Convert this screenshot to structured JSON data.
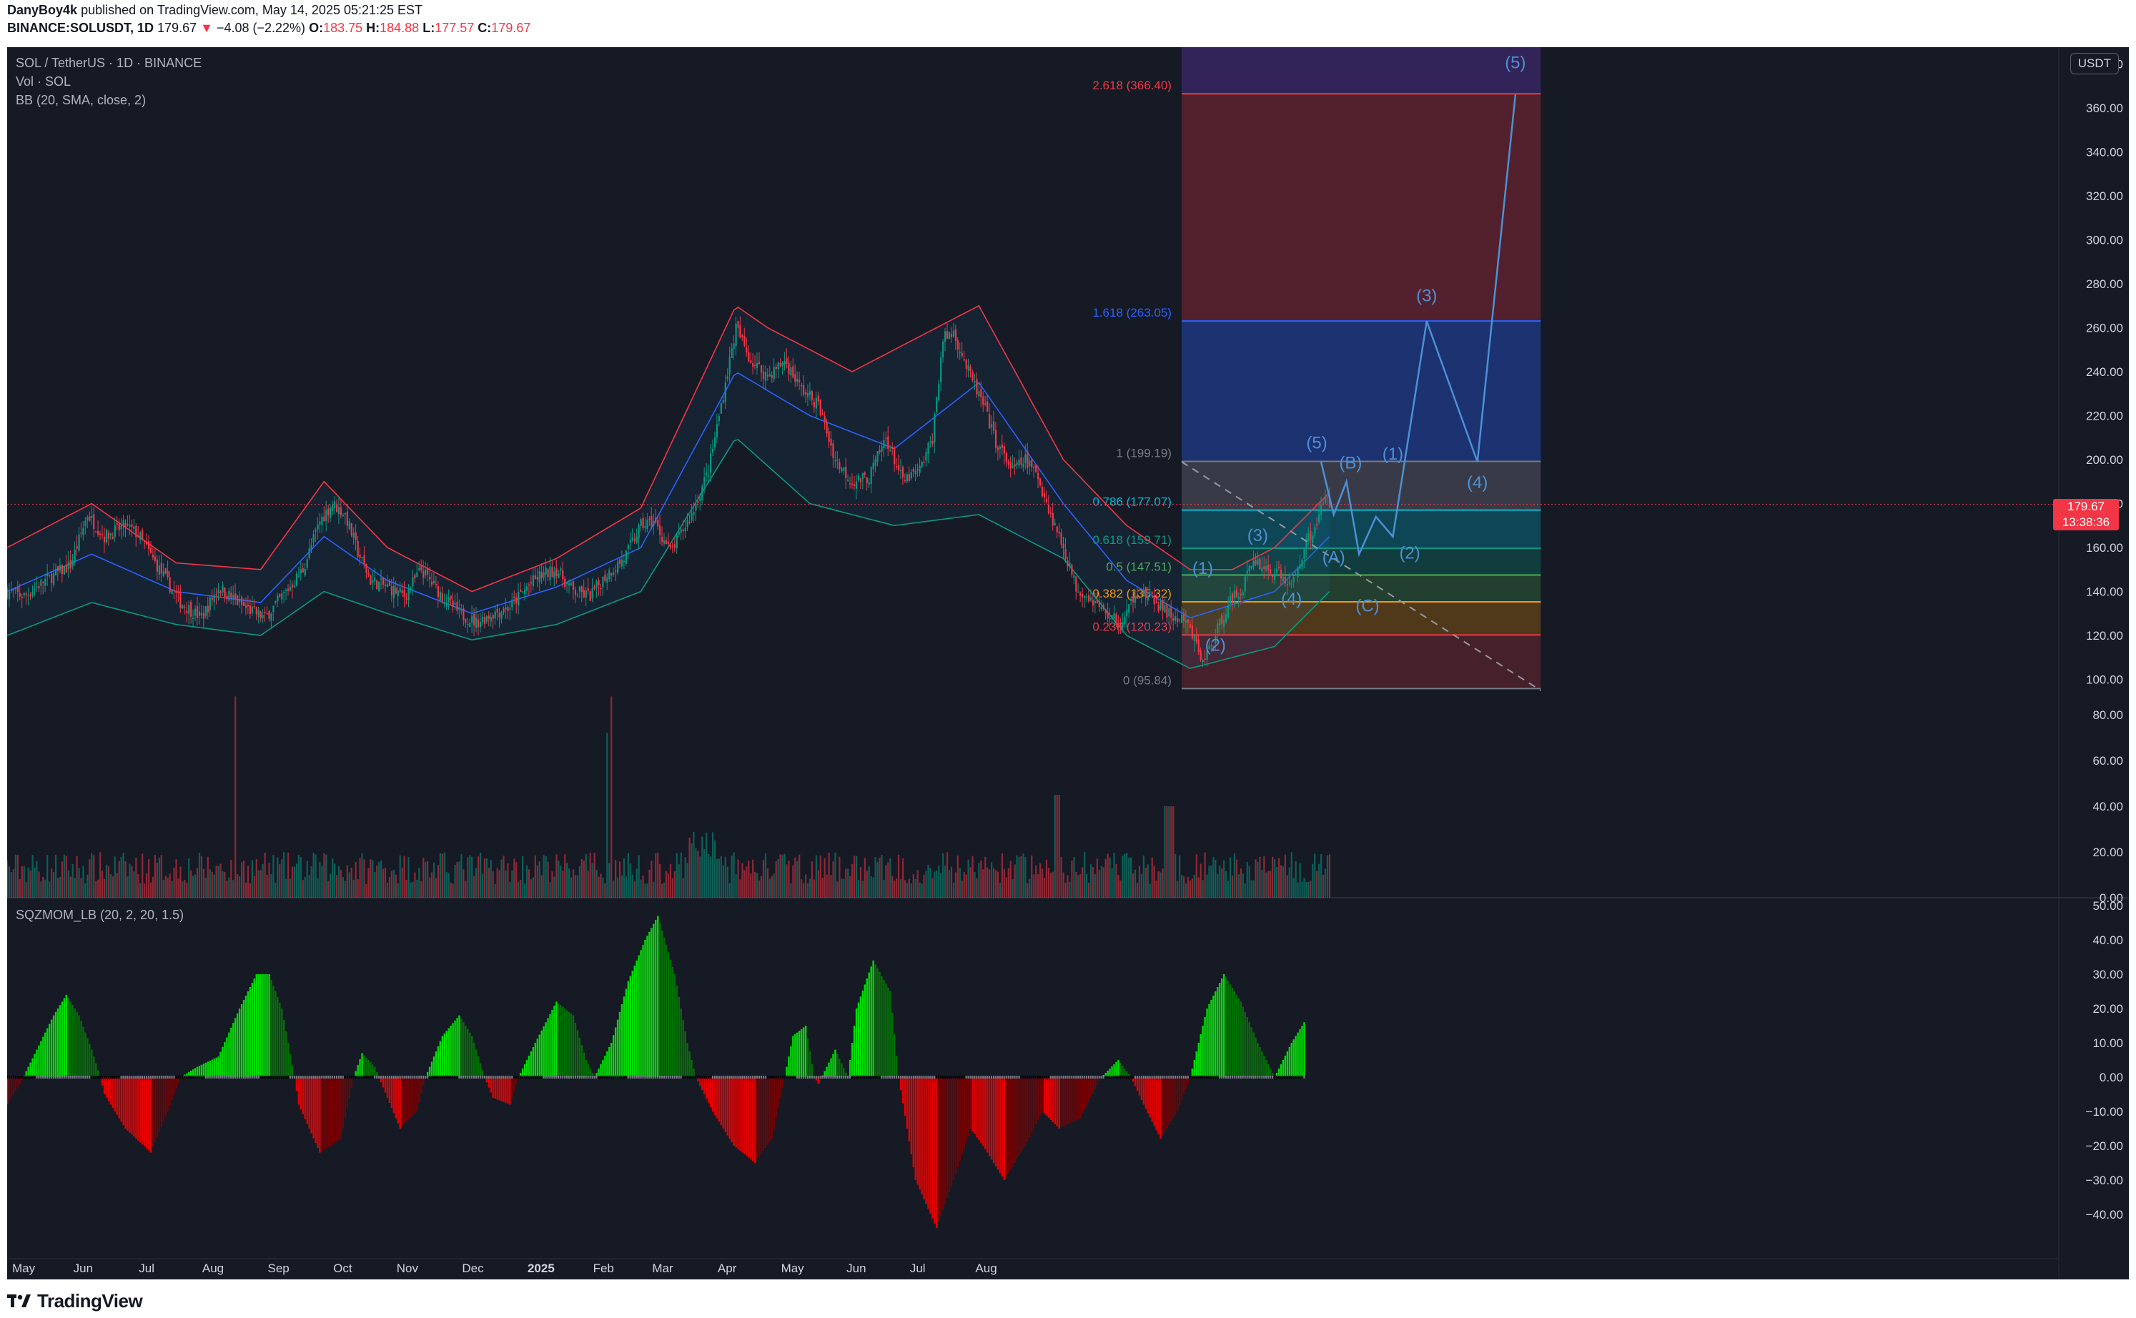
{
  "header": {
    "publisher": "DanyBoy4k",
    "published_text": "published on TradingView.com, May 14, 2025 05:21:25 EST",
    "symbol": "BINANCE:SOLUSDT, 1D",
    "last": "179.67",
    "arrow": "▼",
    "change": "−4.08 (−2.22%)",
    "o_label": "O:",
    "o_val": "183.75",
    "h_label": "H:",
    "h_val": "184.88",
    "l_label": "L:",
    "l_val": "177.57",
    "c_label": "C:",
    "c_val": "179.67"
  },
  "legend": {
    "title": "SOL / TetherUS · 1D · BINANCE",
    "vol": "Vol · SOL",
    "bb": "BB (20, SMA, close, 2)",
    "sqz": "SQZMOM_LB (20, 2, 20, 1.5)"
  },
  "price_axis": {
    "currency": "USDT",
    "current_price": "179.67",
    "countdown": "13:38:36"
  },
  "footer": {
    "brand": "TradingView"
  },
  "colors": {
    "background": "#161a25",
    "up": "#089981",
    "down": "#f23645",
    "bb_upper": "#f23645",
    "bb_basis": "#2962ff",
    "bb_lower": "#089981",
    "wave": "#4d90d6",
    "sqz_lime": "#00ff00",
    "sqz_green": "#008000",
    "sqz_red": "#ff0000",
    "sqz_maroon": "#800000"
  },
  "chart_data": [
    {
      "type": "candlestick",
      "title": "SOL / TetherUS · 1D · BINANCE",
      "x_ticks": [
        "May",
        "Jun",
        "Jul",
        "Aug",
        "Sep",
        "Oct",
        "Nov",
        "Dec",
        "2025",
        "Feb",
        "Mar",
        "Apr",
        "May",
        "Jun",
        "Jul",
        "Aug"
      ],
      "y_ticks": [
        "380.00",
        "360.00",
        "340.00",
        "320.00",
        "300.00",
        "280.00",
        "260.00",
        "240.00",
        "220.00",
        "200.00",
        "180.00",
        "160.00",
        "140.00",
        "120.00",
        "100.00"
      ],
      "y_range": [
        95,
        385
      ],
      "price_path": [
        [
          0,
          140
        ],
        [
          8,
          138
        ],
        [
          18,
          145
        ],
        [
          30,
          152
        ],
        [
          38,
          175
        ],
        [
          46,
          165
        ],
        [
          56,
          170
        ],
        [
          62,
          166
        ],
        [
          72,
          150
        ],
        [
          82,
          135
        ],
        [
          92,
          128
        ],
        [
          100,
          142
        ],
        [
          112,
          133
        ],
        [
          122,
          128
        ],
        [
          132,
          140
        ],
        [
          140,
          150
        ],
        [
          148,
          172
        ],
        [
          154,
          180
        ],
        [
          160,
          175
        ],
        [
          166,
          158
        ],
        [
          172,
          145
        ],
        [
          180,
          142
        ],
        [
          188,
          138
        ],
        [
          196,
          150
        ],
        [
          200,
          145
        ],
        [
          206,
          138
        ],
        [
          214,
          130
        ],
        [
          222,
          126
        ],
        [
          230,
          130
        ],
        [
          238,
          133
        ],
        [
          246,
          142
        ],
        [
          252,
          147
        ],
        [
          260,
          150
        ],
        [
          268,
          140
        ],
        [
          276,
          138
        ],
        [
          284,
          148
        ],
        [
          292,
          155
        ],
        [
          300,
          170
        ],
        [
          306,
          172
        ],
        [
          314,
          158
        ],
        [
          324,
          175
        ],
        [
          332,
          195
        ],
        [
          338,
          225
        ],
        [
          345,
          260
        ],
        [
          352,
          245
        ],
        [
          360,
          238
        ],
        [
          368,
          245
        ],
        [
          376,
          232
        ],
        [
          384,
          225
        ],
        [
          392,
          200
        ],
        [
          400,
          190
        ],
        [
          408,
          192
        ],
        [
          416,
          210
        ],
        [
          424,
          190
        ],
        [
          432,
          195
        ],
        [
          438,
          210
        ],
        [
          443,
          255
        ],
        [
          448,
          258
        ],
        [
          455,
          240
        ],
        [
          462,
          225
        ],
        [
          468,
          208
        ],
        [
          476,
          195
        ],
        [
          482,
          200
        ],
        [
          488,
          192
        ],
        [
          494,
          175
        ],
        [
          500,
          160
        ],
        [
          506,
          142
        ],
        [
          512,
          138
        ],
        [
          520,
          130
        ],
        [
          528,
          125
        ],
        [
          534,
          140
        ],
        [
          540,
          138
        ],
        [
          546,
          133
        ],
        [
          552,
          128
        ],
        [
          558,
          126
        ],
        [
          562,
          118
        ],
        [
          566,
          108
        ],
        [
          572,
          120
        ],
        [
          578,
          135
        ],
        [
          584,
          140
        ],
        [
          590,
          155
        ],
        [
          596,
          150
        ],
        [
          602,
          148
        ],
        [
          608,
          142
        ],
        [
          614,
          160
        ],
        [
          620,
          172
        ],
        [
          624,
          182
        ],
        [
          626,
          180
        ]
      ],
      "bb_upper_path": [
        [
          0,
          160
        ],
        [
          40,
          180
        ],
        [
          80,
          153
        ],
        [
          120,
          150
        ],
        [
          150,
          190
        ],
        [
          180,
          160
        ],
        [
          220,
          140
        ],
        [
          260,
          155
        ],
        [
          300,
          178
        ],
        [
          345,
          270
        ],
        [
          360,
          260
        ],
        [
          400,
          240
        ],
        [
          440,
          260
        ],
        [
          460,
          270
        ],
        [
          500,
          200
        ],
        [
          530,
          170
        ],
        [
          560,
          150
        ],
        [
          580,
          150
        ],
        [
          600,
          160
        ],
        [
          626,
          185
        ]
      ],
      "bb_basis_path": [
        [
          0,
          140
        ],
        [
          40,
          157
        ],
        [
          80,
          140
        ],
        [
          120,
          135
        ],
        [
          150,
          165
        ],
        [
          180,
          145
        ],
        [
          220,
          130
        ],
        [
          260,
          142
        ],
        [
          300,
          160
        ],
        [
          345,
          240
        ],
        [
          380,
          220
        ],
        [
          420,
          205
        ],
        [
          460,
          235
        ],
        [
          500,
          180
        ],
        [
          530,
          145
        ],
        [
          560,
          128
        ],
        [
          600,
          140
        ],
        [
          626,
          165
        ]
      ],
      "bb_lower_path": [
        [
          0,
          120
        ],
        [
          40,
          135
        ],
        [
          80,
          125
        ],
        [
          120,
          120
        ],
        [
          150,
          140
        ],
        [
          180,
          130
        ],
        [
          220,
          118
        ],
        [
          260,
          125
        ],
        [
          300,
          140
        ],
        [
          345,
          210
        ],
        [
          380,
          180
        ],
        [
          420,
          170
        ],
        [
          460,
          175
        ],
        [
          500,
          155
        ],
        [
          530,
          120
        ],
        [
          560,
          105
        ],
        [
          600,
          115
        ],
        [
          626,
          140
        ]
      ],
      "fib_levels": [
        {
          "label": "2.618 (366.40)",
          "value": 366.4,
          "color": "#f23645"
        },
        {
          "label": "1.618 (263.05)",
          "value": 263.05,
          "color": "#2962ff"
        },
        {
          "label": "1 (199.19)",
          "value": 199.19,
          "color": "#787b86"
        },
        {
          "label": "0.786 (177.07)",
          "value": 177.07,
          "color": "#00bcd4"
        },
        {
          "label": "0.618 (159.71)",
          "value": 159.71,
          "color": "#089981"
        },
        {
          "label": "0.5 (147.51)",
          "value": 147.51,
          "color": "#4caf50"
        },
        {
          "label": "0.382 (135.32)",
          "value": 135.32,
          "color": "#ff9800"
        },
        {
          "label": "0.236 (120.23)",
          "value": 120.23,
          "color": "#f23645"
        },
        {
          "label": "0 (95.84)",
          "value": 95.84,
          "color": "#787b86"
        }
      ],
      "wave_projection": [
        [
          622,
          199
        ],
        [
          628,
          175
        ],
        [
          634,
          190
        ],
        [
          640,
          157
        ],
        [
          648,
          174
        ],
        [
          656,
          165
        ],
        [
          672,
          263
        ],
        [
          696,
          199
        ],
        [
          714,
          366
        ]
      ],
      "wave_labels": [
        {
          "text": "(1)",
          "day": 566,
          "price": 148
        },
        {
          "text": "(2)",
          "day": 572,
          "price": 113
        },
        {
          "text": "(3)",
          "day": 592,
          "price": 163
        },
        {
          "text": "(4)",
          "day": 608,
          "price": 134
        },
        {
          "text": "(5)",
          "day": 620,
          "price": 205
        },
        {
          "text": "(A)",
          "day": 628,
          "price": 153
        },
        {
          "text": "(B)",
          "day": 636,
          "price": 196
        },
        {
          "text": "(C)",
          "day": 644,
          "price": 131
        },
        {
          "text": "(1)",
          "day": 656,
          "price": 200
        },
        {
          "text": "(2)",
          "day": 664,
          "price": 155
        },
        {
          "text": "(3)",
          "day": 672,
          "price": 272
        },
        {
          "text": "(4)",
          "day": 696,
          "price": 187
        },
        {
          "text": "(5)",
          "day": 714,
          "price": 378
        }
      ],
      "trendline": [
        [
          556,
          199
        ],
        [
          726,
          95
        ]
      ]
    },
    {
      "type": "bar",
      "title": "Vol · SOL",
      "y_ticks": [
        "80.00",
        "60.00",
        "40.00",
        "20.00",
        "0.00"
      ],
      "y_range": [
        0,
        100
      ],
      "note": "daily volume in millions; roughly 5–25 typical with spikes near 88 (Aug), 88 (Jan) and 45 (Mar/Apr)"
    },
    {
      "type": "bar",
      "title": "SQZMOM_LB (20, 2, 20, 1.5)",
      "y_ticks": [
        "50.00",
        "40.00",
        "30.00",
        "20.00",
        "10.00",
        "0.00",
        "−10.00",
        "−20.00",
        "−30.00",
        "−40.00"
      ],
      "y_range": [
        -45,
        50
      ],
      "momentum_path": [
        [
          0,
          -8
        ],
        [
          6,
          -2
        ],
        [
          14,
          8
        ],
        [
          22,
          18
        ],
        [
          28,
          24
        ],
        [
          34,
          18
        ],
        [
          40,
          8
        ],
        [
          44,
          0
        ],
        [
          46,
          -5
        ],
        [
          56,
          -15
        ],
        [
          68,
          -22
        ],
        [
          76,
          -10
        ],
        [
          82,
          0
        ],
        [
          90,
          3
        ],
        [
          100,
          6
        ],
        [
          110,
          20
        ],
        [
          118,
          30
        ],
        [
          124,
          30
        ],
        [
          130,
          20
        ],
        [
          136,
          0
        ],
        [
          138,
          -8
        ],
        [
          148,
          -22
        ],
        [
          158,
          -18
        ],
        [
          164,
          0
        ],
        [
          168,
          7
        ],
        [
          174,
          3
        ],
        [
          178,
          -3
        ],
        [
          186,
          -15
        ],
        [
          194,
          -10
        ],
        [
          198,
          0
        ],
        [
          206,
          12
        ],
        [
          214,
          18
        ],
        [
          220,
          12
        ],
        [
          226,
          0
        ],
        [
          230,
          -6
        ],
        [
          238,
          -8
        ],
        [
          242,
          0
        ],
        [
          250,
          10
        ],
        [
          260,
          22
        ],
        [
          268,
          18
        ],
        [
          274,
          5
        ],
        [
          278,
          0
        ],
        [
          286,
          10
        ],
        [
          294,
          28
        ],
        [
          302,
          40
        ],
        [
          308,
          47
        ],
        [
          316,
          30
        ],
        [
          322,
          10
        ],
        [
          326,
          0
        ],
        [
          334,
          -10
        ],
        [
          344,
          -20
        ],
        [
          354,
          -25
        ],
        [
          362,
          -18
        ],
        [
          368,
          0
        ],
        [
          372,
          12
        ],
        [
          378,
          15
        ],
        [
          382,
          0
        ],
        [
          384,
          -2
        ],
        [
          392,
          8
        ],
        [
          398,
          0
        ],
        [
          402,
          20
        ],
        [
          410,
          34
        ],
        [
          418,
          25
        ],
        [
          422,
          0
        ],
        [
          430,
          -30
        ],
        [
          440,
          -44
        ],
        [
          448,
          -30
        ],
        [
          456,
          -15
        ],
        [
          462,
          -20
        ],
        [
          472,
          -30
        ],
        [
          482,
          -20
        ],
        [
          490,
          -10
        ],
        [
          498,
          -15
        ],
        [
          508,
          -12
        ],
        [
          518,
          0
        ],
        [
          526,
          5
        ],
        [
          532,
          0
        ],
        [
          538,
          -8
        ],
        [
          546,
          -18
        ],
        [
          554,
          -10
        ],
        [
          560,
          0
        ],
        [
          568,
          20
        ],
        [
          576,
          30
        ],
        [
          584,
          22
        ],
        [
          592,
          10
        ],
        [
          600,
          0
        ],
        [
          608,
          10
        ],
        [
          614,
          16
        ]
      ]
    }
  ]
}
